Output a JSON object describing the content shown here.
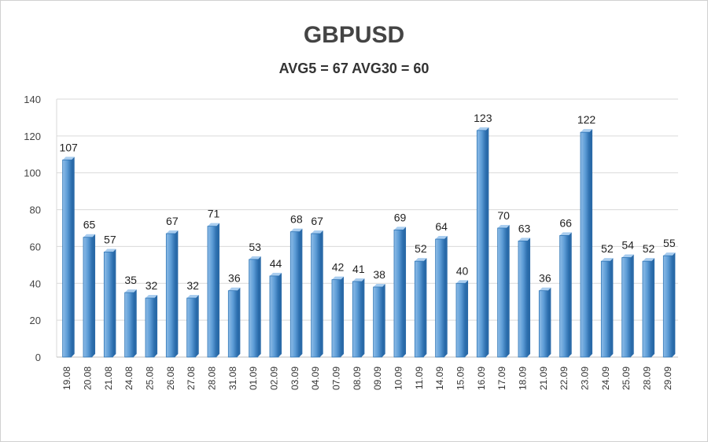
{
  "chart_data": {
    "type": "bar",
    "title": "GBPUSD",
    "subtitle": "AVG5 = 67 AVG30 = 60",
    "categories": [
      "19.08",
      "20.08",
      "21.08",
      "24.08",
      "25.08",
      "26.08",
      "27.08",
      "28.08",
      "31.08",
      "01.09",
      "02.09",
      "03.09",
      "04.09",
      "07.09",
      "08.09",
      "09.09",
      "10.09",
      "11.09",
      "14.09",
      "15.09",
      "16.09",
      "17.09",
      "18.09",
      "21.09",
      "22.09",
      "23.09",
      "24.09",
      "25.09",
      "28.09",
      "29.09"
    ],
    "values": [
      107,
      65,
      57,
      35,
      32,
      67,
      32,
      71,
      36,
      53,
      44,
      68,
      67,
      42,
      41,
      38,
      69,
      52,
      64,
      40,
      123,
      70,
      63,
      36,
      66,
      122,
      52,
      54,
      52,
      55
    ],
    "ylim": [
      0,
      140
    ],
    "yticks": [
      0,
      20,
      40,
      60,
      80,
      100,
      120,
      140
    ],
    "grid": true,
    "legend": "none",
    "bar_color": "#5b9bd5",
    "bar_edge_color": "#2e75b6"
  }
}
